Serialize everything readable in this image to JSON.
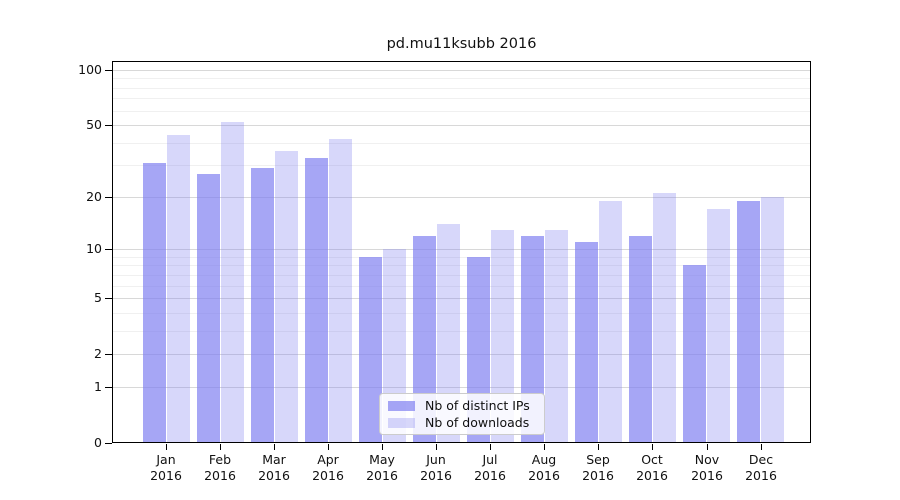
{
  "chart_data": {
    "type": "bar",
    "title": "pd.mu11ksubb 2016",
    "categories": [
      "Jan",
      "Feb",
      "Mar",
      "Apr",
      "May",
      "Jun",
      "Jul",
      "Aug",
      "Sep",
      "Oct",
      "Nov",
      "Dec"
    ],
    "year_label": "2016",
    "series": [
      {
        "name": "Nb of distinct IPs",
        "color": "rgba(124,124,240,0.68)",
        "values": [
          31,
          27,
          29,
          33,
          9,
          12,
          9,
          12,
          11,
          12,
          8,
          19
        ]
      },
      {
        "name": "Nb of downloads",
        "color": "rgba(124,124,240,0.30)",
        "values": [
          44,
          52,
          36,
          42,
          10,
          14,
          13,
          13,
          19,
          21,
          17,
          20
        ]
      }
    ],
    "xlabel": "",
    "ylabel": "",
    "yscale": "log1p",
    "ylim": [
      0,
      100
    ],
    "yticks": [
      0,
      1,
      2,
      5,
      10,
      20,
      50,
      100
    ],
    "minor_gridlines": [
      3,
      4,
      6,
      7,
      8,
      9,
      30,
      40,
      60,
      70,
      80,
      90
    ],
    "grid": true,
    "legend_position": "lower center",
    "colors": {
      "major_grid": "#d8d8d8",
      "minor_grid": "#f0f0f0",
      "axis": "#000000"
    }
  }
}
